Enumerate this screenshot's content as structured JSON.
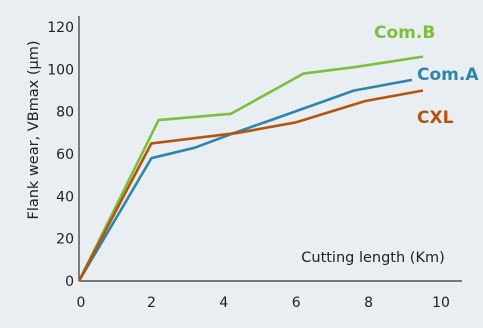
{
  "chart_data": {
    "type": "line",
    "title": "",
    "xlabel": "Cutting length (Km)",
    "ylabel": "Flank wear, VBmax (μm)",
    "xlim": [
      0,
      10
    ],
    "ylim": [
      0,
      120
    ],
    "xticks": [
      0,
      2,
      4,
      6,
      8,
      10
    ],
    "yticks": [
      0,
      20,
      40,
      60,
      80,
      100,
      120
    ],
    "grid": false,
    "legend": "inline labels at line ends",
    "series": [
      {
        "name": "Com.B",
        "color": "#7cbf3d",
        "points": [
          [
            0,
            0
          ],
          [
            2.2,
            76
          ],
          [
            4.2,
            79
          ],
          [
            6.2,
            98
          ],
          [
            7.6,
            101
          ],
          [
            9.5,
            106
          ]
        ]
      },
      {
        "name": "Com.A",
        "color": "#2f86aa",
        "points": [
          [
            0,
            0
          ],
          [
            2,
            58
          ],
          [
            3.2,
            63
          ],
          [
            4.3,
            70
          ],
          [
            5.3,
            76
          ],
          [
            7.6,
            90
          ],
          [
            9.2,
            95
          ]
        ]
      },
      {
        "name": "CXL",
        "color": "#b5540f",
        "points": [
          [
            0,
            0
          ],
          [
            2,
            65
          ],
          [
            4.4,
            70
          ],
          [
            6,
            75
          ],
          [
            7.9,
            85
          ],
          [
            9.5,
            90
          ]
        ]
      }
    ]
  }
}
